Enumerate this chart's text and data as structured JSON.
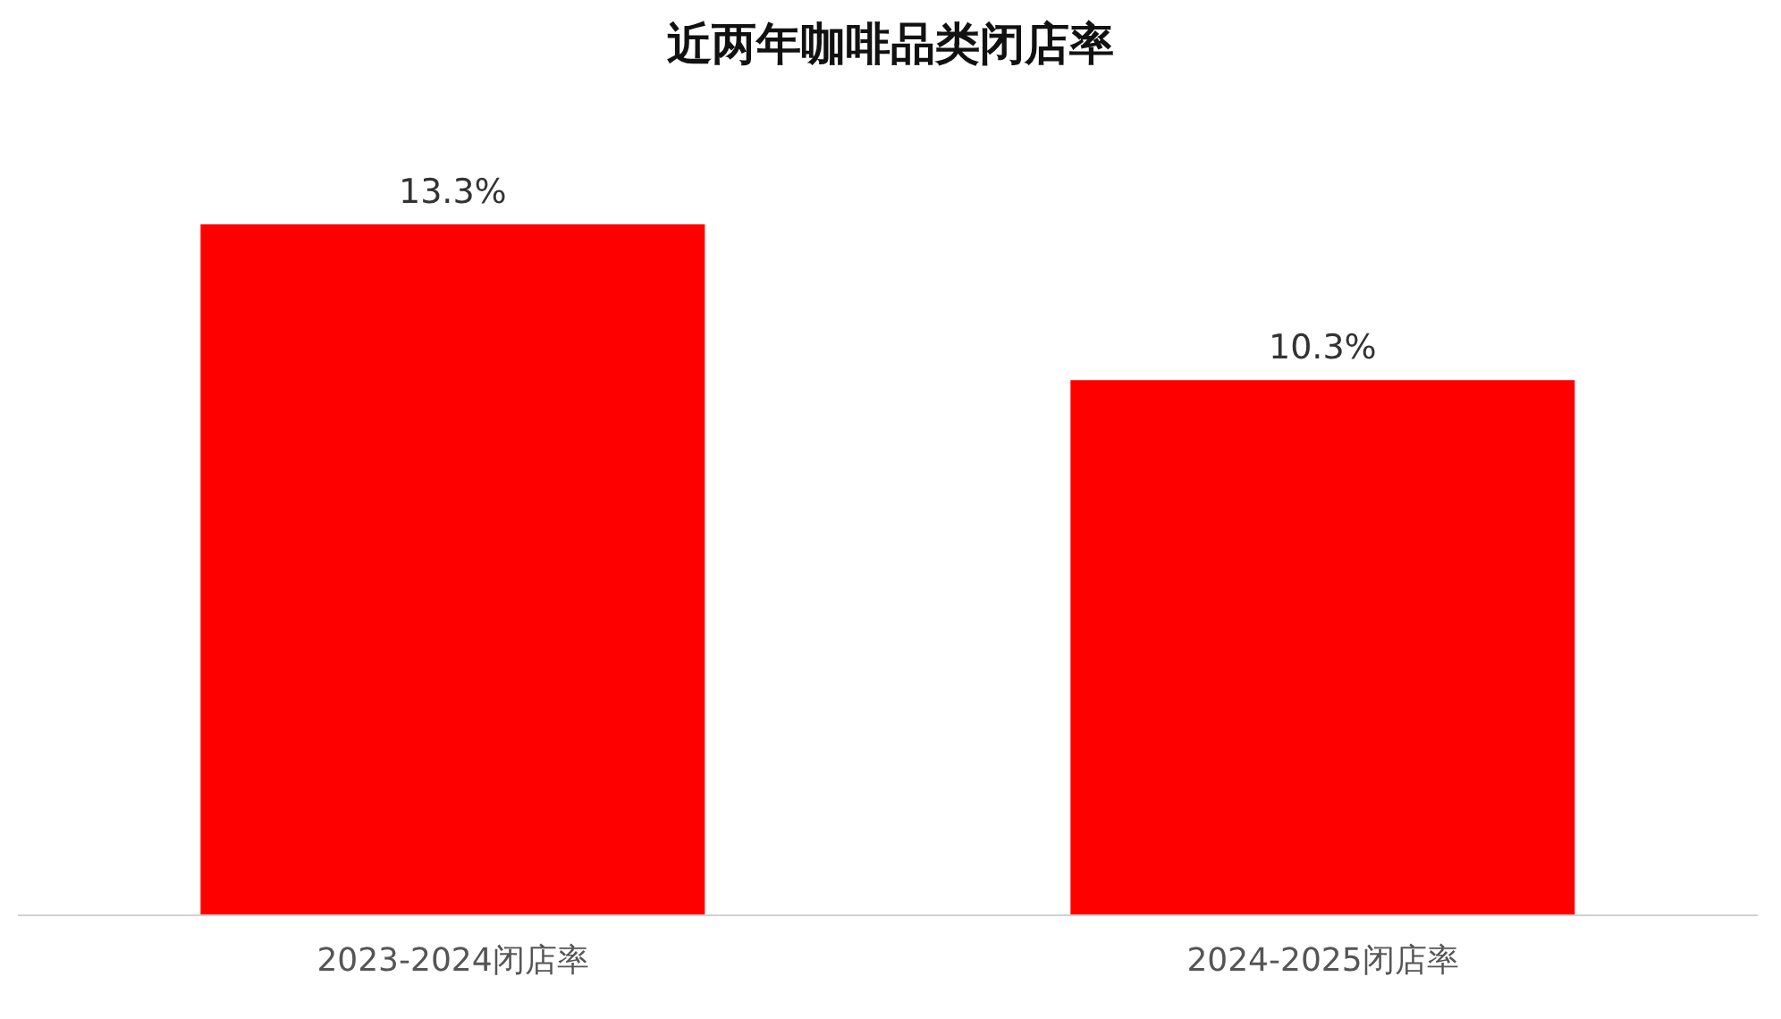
{
  "chart_data": {
    "type": "bar",
    "title": "近两年咖啡品类闭店率",
    "categories": [
      "2023-2024闭店率",
      "2024-2025闭店率"
    ],
    "values": [
      13.3,
      10.3
    ],
    "value_labels": [
      "13.3%",
      "10.3%"
    ],
    "color": "#ff0000",
    "grid": false,
    "legend": false
  }
}
